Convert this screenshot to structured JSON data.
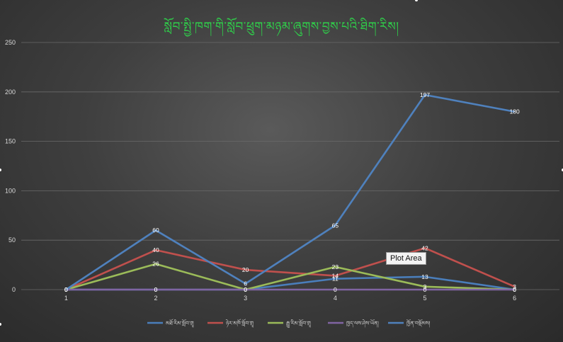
{
  "chart_data": {
    "type": "line",
    "title": "སློབ་སྤྱི་ཁག་གི་སློབ་ཕྲུག་མཉམ་ཞུགས་བྱས་པའི་ཐིག་རིས།",
    "categories": [
      "1",
      "2",
      "3",
      "4",
      "5",
      "6"
    ],
    "y_ticks": [
      "0",
      "50",
      "100",
      "150",
      "200",
      "250"
    ],
    "ylim": [
      0,
      250
    ],
    "grid": true,
    "legend_position": "bottom",
    "series": [
      {
        "name": "མཐོ་རིམ་སློབ་གྲྭ",
        "color": "#4a7ebb",
        "values": [
          0,
          0,
          0,
          11,
          13,
          0
        ],
        "labels": [
          "0",
          "0",
          "0",
          "11",
          "13",
          "0"
        ]
      },
      {
        "name": "ཉེར་མཁོ་སློབ་གྲྭ",
        "color": "#c0504d",
        "values": [
          0,
          40,
          20,
          14,
          42,
          3
        ],
        "labels": [
          "0",
          "40",
          "20",
          "14",
          "42",
          "3"
        ]
      },
      {
        "name": "རྒྱུ་རིམ་སློབ་གྲྭ",
        "color": "#9bbb59",
        "values": [
          0,
          26,
          0,
          23,
          3,
          0
        ],
        "labels": [
          "0",
          "26",
          "0",
          "23",
          "3",
          "0"
        ]
      },
      {
        "name": "ཁྱད་ལས་ཤེས་ཡོན།",
        "color": "#8064a2",
        "values": [
          0,
          0,
          0,
          0,
          0,
          0
        ],
        "labels": [
          "0",
          "0",
          "0",
          "0",
          "0",
          "0"
        ]
      },
      {
        "name": "ཁྱོན་བསྡོམས།",
        "color": "#4f81bd",
        "values": [
          0,
          60,
          6,
          65,
          197,
          180
        ],
        "labels": [
          "0",
          "60",
          "6",
          "65",
          "197",
          "180"
        ]
      }
    ]
  },
  "tooltip": {
    "text": "Plot Area"
  }
}
